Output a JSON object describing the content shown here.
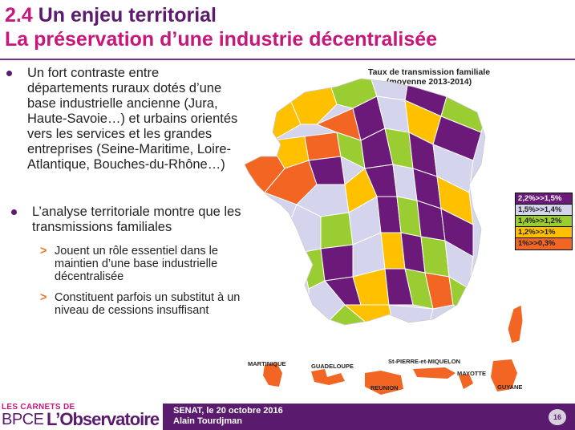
{
  "title": {
    "number": "2.4",
    "line1": "Un enjeu territorial",
    "line2": "La préservation d’une industrie décentralisée"
  },
  "bullets": [
    {
      "text": "Un fort contraste entre départements ruraux dotés d’une base industrielle ancienne (Jura, Haute-Savoie…) et urbains orientés vers les services et les grandes entreprises (Seine-Maritime, Loire-Atlantique, Bouches-du-Rhône…)"
    },
    {
      "text": "L’analyse territoriale montre que les transmissions familiales",
      "subs": [
        "Jouent un rôle essentiel dans le maintien d’une base industrielle décentralisée",
        "Constituent parfois un substitut à un niveau de cessions insuffisant"
      ]
    }
  ],
  "map": {
    "title_line1": "Taux de transmission familiale",
    "title_line2": "(moyenne 2013-2014)",
    "legend": [
      {
        "label": "2,2%>>1,5%",
        "color": "#6b1a7a",
        "text_color": "#ffffff"
      },
      {
        "label": "1,5%>>1,4%",
        "color": "#d4d4ec",
        "text_color": "#222222"
      },
      {
        "label": "1,4%>>1,2%",
        "color": "#9acd32",
        "text_color": "#222222"
      },
      {
        "label": "1,2%>>1%",
        "color": "#ffc000",
        "text_color": "#222222"
      },
      {
        "label": "1%>>0,3%",
        "color": "#f26522",
        "text_color": "#222222"
      }
    ],
    "overseas": {
      "martinique": "MARTINIQUE",
      "guadeloupe": "GUADELOUPE",
      "stpierre": "St-PIERRE-et-MIQUELON",
      "reunion": "REUNION",
      "mayotte": "MAYOTTE",
      "guyane": "GUYANE"
    }
  },
  "footer": {
    "brand_top": "LES CARNETS DE",
    "brand_bpce": "BPCE",
    "brand_obs": "L’Observatoire",
    "line1": "SENAT, le 20 octobre 2016",
    "line2": "Alain Tourdjman",
    "page": "16"
  }
}
